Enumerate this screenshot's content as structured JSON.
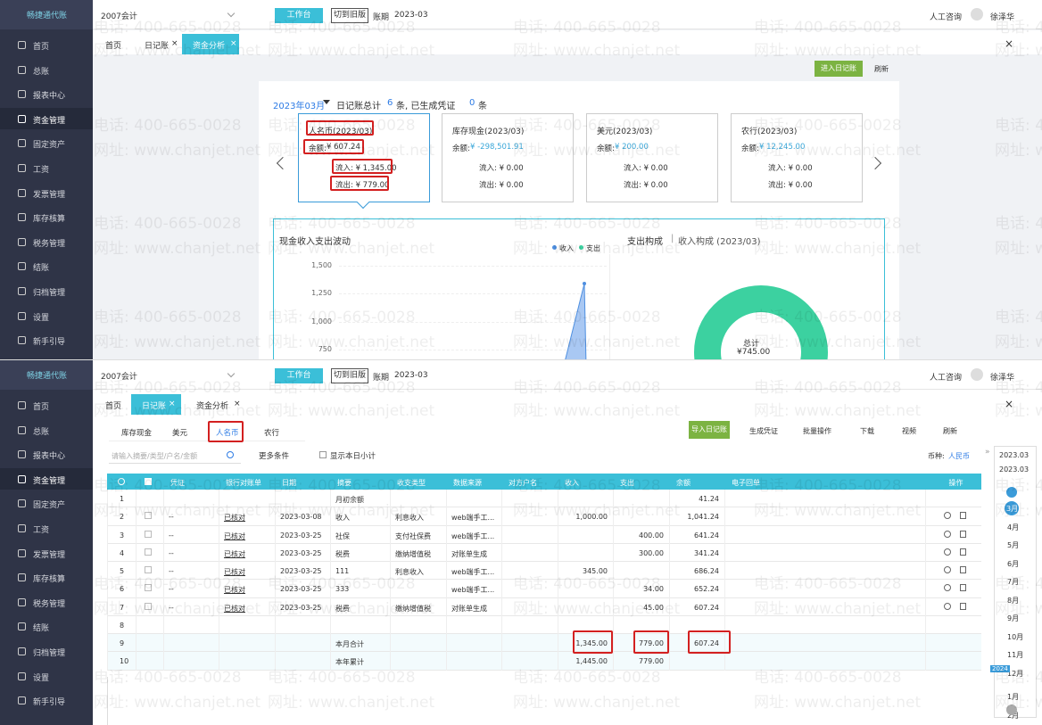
{
  "brand": "畅捷通代账",
  "account": "2007会计",
  "workbench": "工作台",
  "old_version": "切到旧版",
  "period_label": "账期",
  "period": "2023-03",
  "help": "人工咨询",
  "user": "徐泽华",
  "sidebar": [
    "首页",
    "总账",
    "报表中心",
    "资金管理",
    "固定资产",
    "工资",
    "发票管理",
    "库存核算",
    "税务管理",
    "结账",
    "归档管理",
    "设置",
    "新手引导"
  ],
  "tabs": [
    "首页",
    "日记账",
    "资金分析"
  ],
  "watermark": {
    "phone": "电话: 400-665-0028",
    "site": "网址: www.chanjet.net"
  },
  "analysis": {
    "enter_button": "进入日记账",
    "refresh": "刷新",
    "month": "2023年03月",
    "summary_prefix": "日记账总计",
    "entries": "6",
    "summary_mid": "条, 已生成凭证",
    "vouchers": "0",
    "summary_suffix": "条",
    "cards": [
      {
        "name": "人名币(2023/03)",
        "balance_label": "余额:",
        "balance": "¥ 607.24",
        "inflow": "流入: ¥ 1,345.00",
        "outflow": "流出: ¥ 779.00"
      },
      {
        "name": "库存现金(2023/03)",
        "balance_label": "余额:",
        "balance": "¥ -298,501.91",
        "inflow": "流入: ¥ 0.00",
        "outflow": "流出: ¥ 0.00"
      },
      {
        "name": "美元(2023/03)",
        "balance_label": "余额:",
        "balance": "¥ 200.00",
        "inflow": "流入: ¥ 0.00",
        "outflow": "流出: ¥ 0.00"
      },
      {
        "name": "农行(2023/03)",
        "balance_label": "余额:",
        "balance": "¥ 12,245.00",
        "inflow": "流入: ¥ 0.00",
        "outflow": "流出: ¥ 0.00"
      }
    ],
    "flow_chart": {
      "title": "现金收入支出波动",
      "legend": [
        "收入",
        "支出"
      ],
      "yticks": [
        "1,500",
        "1,250",
        "1,000",
        "750"
      ]
    },
    "composition": {
      "title": "支出构成",
      "separator": "|",
      "subtitle": "收入构成 (2023/03)",
      "total_label": "总计",
      "total": "¥745.00"
    }
  },
  "journal": {
    "subtabs": [
      "库存现金",
      "美元",
      "人名币",
      "农行"
    ],
    "buttons": [
      "导入日记账",
      "生成凭证",
      "批量操作",
      "下载",
      "视频",
      "刷新"
    ],
    "search_placeholder": "请输入摘要/类型/户名/金额",
    "more": "更多条件",
    "daily_subtotal": "显示本日小计",
    "currency_label": "币种:",
    "currency": "人民币",
    "columns": {
      "voucher": "凭证",
      "bank": "银行对账单",
      "date": "日期",
      "summary": "摘要",
      "type": "收支类型",
      "source": "数据来源",
      "party": "对方户名",
      "income": "收入",
      "expense": "支出",
      "balance": "余额",
      "receipt": "电子回单",
      "ops": "操作"
    },
    "rows": [
      {
        "no": "1",
        "summary": "月初余额",
        "balance": "41.24"
      },
      {
        "no": "2",
        "voucher": "--",
        "bank": "已核对",
        "date": "2023-03-08",
        "summary": "收入",
        "type": "利息收入",
        "source": "web端手工...",
        "income": "1,000.00",
        "balance": "1,041.24"
      },
      {
        "no": "3",
        "voucher": "--",
        "bank": "已核对",
        "date": "2023-03-25",
        "summary": "社保",
        "type": "支付社保费",
        "source": "web端手工...",
        "expense": "400.00",
        "balance": "641.24"
      },
      {
        "no": "4",
        "voucher": "--",
        "bank": "已核对",
        "date": "2023-03-25",
        "summary": "税费",
        "type": "缴纳增值税",
        "source": "对账单生成",
        "expense": "300.00",
        "balance": "341.24"
      },
      {
        "no": "5",
        "voucher": "--",
        "bank": "已核对",
        "date": "2023-03-25",
        "summary": "111",
        "type": "利息收入",
        "source": "web端手工...",
        "income": "345.00",
        "balance": "686.24"
      },
      {
        "no": "6",
        "voucher": "--",
        "bank": "已核对",
        "date": "2023-03-25",
        "summary": "333",
        "source": "web端手工...",
        "expense": "34.00",
        "balance": "652.24"
      },
      {
        "no": "7",
        "voucher": "--",
        "bank": "已核对",
        "date": "2023-03-25",
        "summary": "税费",
        "type": "缴纳增值税",
        "source": "对账单生成",
        "expense": "45.00",
        "balance": "607.24"
      },
      {
        "no": "8"
      },
      {
        "no": "9",
        "summary": "本月合计",
        "income": "1,345.00",
        "expense": "779.00",
        "balance": "607.24"
      },
      {
        "no": "10",
        "summary": "本年累计",
        "income": "1,445.00",
        "expense": "779.00"
      }
    ],
    "calendar": {
      "period": "2023.03",
      "selected": "2023.03",
      "year": "2024",
      "months": [
        "3月",
        "4月",
        "5月",
        "6月",
        "7月",
        "8月",
        "9月",
        "10月",
        "11月",
        "12月",
        "1月",
        "2月"
      ]
    }
  }
}
